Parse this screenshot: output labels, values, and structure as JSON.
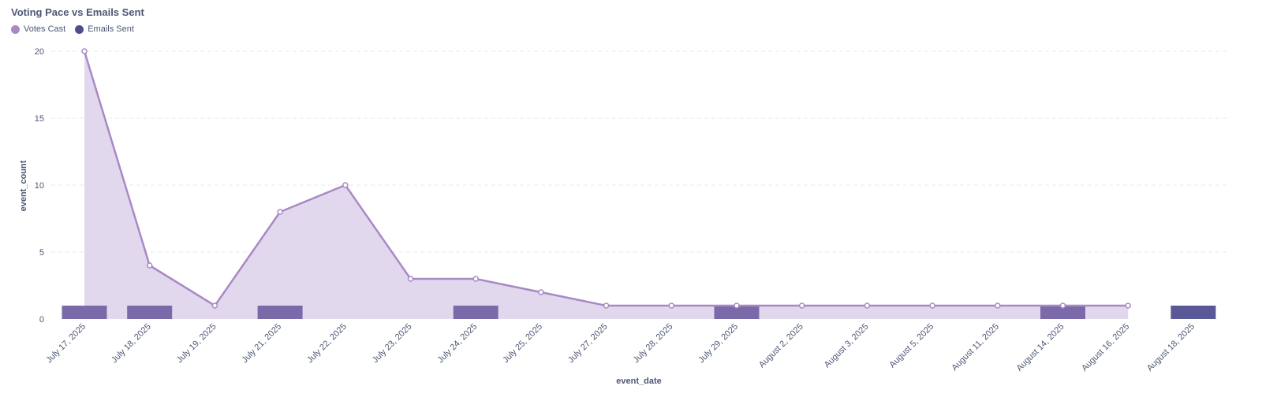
{
  "chart_title": "Voting Pace vs Emails Sent",
  "chart_data": {
    "type": "line",
    "title": "Voting Pace vs Emails Sent",
    "xlabel": "event_date",
    "ylabel": "event_count",
    "ylim": [
      0,
      20
    ],
    "yticks": [
      0,
      5,
      10,
      15,
      20
    ],
    "grid": "horizontal dashed",
    "legend_position": "top-left",
    "categories": [
      "July 17, 2025",
      "July 18, 2025",
      "July 19, 2025",
      "July 21, 2025",
      "July 22, 2025",
      "July 23, 2025",
      "July 24, 2025",
      "July 25, 2025",
      "July 27, 2025",
      "July 28, 2025",
      "July 29, 2025",
      "August 2, 2025",
      "August 3, 2025",
      "August 5, 2025",
      "August 11, 2025",
      "August 14, 2025",
      "August 16, 2025",
      "August 18, 2025"
    ],
    "series": [
      {
        "name": "Votes Cast",
        "type": "area",
        "color": "#a989c5",
        "values": [
          20,
          4,
          1,
          8,
          10,
          3,
          3,
          2,
          1,
          1,
          1,
          1,
          1,
          1,
          1,
          1,
          1,
          null
        ]
      },
      {
        "name": "Emails Sent",
        "type": "bar",
        "color": "#5b5b9a",
        "values": [
          1,
          1,
          null,
          1,
          null,
          null,
          1,
          null,
          null,
          null,
          1,
          null,
          null,
          null,
          null,
          1,
          null,
          1
        ]
      }
    ]
  }
}
